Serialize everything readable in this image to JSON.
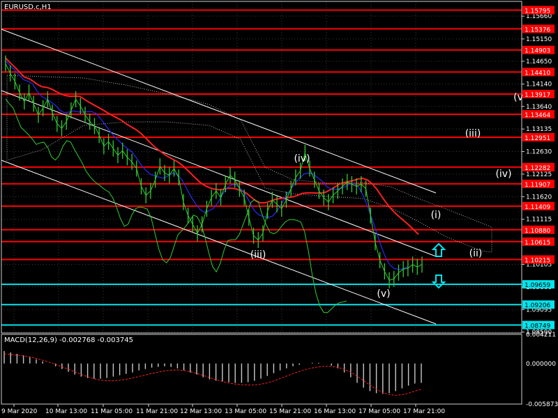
{
  "chart_title": "EURUSD.c,H1",
  "macd_title": "MACD(12,26,9) -0.002768 -0.003745",
  "colors": {
    "background": "#000000",
    "price": "#33cc33",
    "level_red": "#ff0000",
    "level_cyan": "#00e5ee",
    "ma_red": "#ff2020",
    "ma_blue": "#2a2aff",
    "channel": "#ffffff",
    "rsi_line": "#33cc33",
    "arrow": "#00e5ee"
  },
  "chart_data": {
    "type": "line",
    "symbol": "EURUSD.c",
    "timeframe": "H1",
    "y_tick_labels": [
      "1.15660",
      "1.15150",
      "1.14650",
      "1.14140",
      "1.13640",
      "1.13135",
      "1.12630",
      "1.12125",
      "1.11620",
      "1.11115",
      "1.10610",
      "1.10105",
      "1.09600",
      "1.09095",
      "1.08590"
    ],
    "ylim": [
      1.0857,
      1.1599
    ],
    "x_tick_labels": [
      "9 Mar 2020",
      "10 Mar 13:00",
      "11 Mar 05:00",
      "11 Mar 21:00",
      "12 Mar 13:00",
      "13 Mar 05:00",
      "15 Mar 21:00",
      "16 Mar 13:00",
      "17 Mar 05:00",
      "17 Mar 21:00"
    ],
    "horizontal_levels": [
      {
        "price": "1.15795",
        "color": "red"
      },
      {
        "price": "1.15376",
        "color": "red"
      },
      {
        "price": "1.14903",
        "color": "red"
      },
      {
        "price": "1.14410",
        "color": "red"
      },
      {
        "price": "1.13917",
        "color": "red"
      },
      {
        "price": "1.13464",
        "color": "red"
      },
      {
        "price": "1.12951",
        "color": "red"
      },
      {
        "price": "1.12282",
        "color": "red"
      },
      {
        "price": "1.11907",
        "color": "red"
      },
      {
        "price": "1.11409",
        "color": "red"
      },
      {
        "price": "1.10880",
        "color": "red"
      },
      {
        "price": "1.10615",
        "color": "red"
      },
      {
        "price": "1.10215",
        "color": "red"
      },
      {
        "price": "1.09659",
        "color": "cyan"
      },
      {
        "price": "1.09206",
        "color": "cyan"
      },
      {
        "price": "1.08749",
        "color": "cyan"
      }
    ],
    "wave_labels": [
      "(iii)",
      "(iv)",
      "(v)",
      "(i)",
      "(ii)",
      "(iii)",
      "(iv)",
      "(v"
    ],
    "price_series": [
      1.146,
      1.1438,
      1.142,
      1.1395,
      1.1375,
      1.1395,
      1.137,
      1.1345,
      1.136,
      1.138,
      1.135,
      1.1325,
      1.1315,
      1.133,
      1.1355,
      1.138,
      1.1365,
      1.1345,
      1.133,
      1.132,
      1.13,
      1.1275,
      1.1285,
      1.127,
      1.1255,
      1.1265,
      1.125,
      1.124,
      1.1225,
      1.1185,
      1.1165,
      1.1175,
      1.12,
      1.123,
      1.1215,
      1.121,
      1.1225,
      1.1205,
      1.115,
      1.112,
      1.11,
      1.108,
      1.11,
      1.1135,
      1.116,
      1.1175,
      1.116,
      1.119,
      1.121,
      1.12,
      1.118,
      1.116,
      1.1115,
      1.1075,
      1.1065,
      1.108,
      1.113,
      1.1155,
      1.1145,
      1.1135,
      1.1155,
      1.118,
      1.1205,
      1.122,
      1.126,
      1.1225,
      1.12,
      1.1175,
      1.116,
      1.115,
      1.1165,
      1.1175,
      1.1185,
      1.1195,
      1.119,
      1.1185,
      1.119,
      1.118,
      1.112,
      1.106,
      1.102,
      1.0995,
      1.0975,
      1.0978,
      1.0992,
      1.1,
      1.1002,
      1.101,
      1.1005,
      1.101
    ],
    "macd_tick_labels": [
      "0.004211",
      "0.000000",
      "-0.005873"
    ],
    "macd_ylim": [
      -0.005873,
      0.004211
    ],
    "macd_histogram": [
      0.0018,
      0.0016,
      0.0014,
      0.0012,
      0.0009,
      0.0006,
      0.0003,
      0.0,
      -0.0004,
      -0.0008,
      -0.0012,
      -0.0016,
      -0.0019,
      -0.0021,
      -0.0022,
      -0.0022,
      -0.0021,
      -0.0019,
      -0.0017,
      -0.0015,
      -0.0013,
      -0.001,
      -0.0008,
      -0.0006,
      -0.0005,
      -0.0004,
      -0.0005,
      -0.0007,
      -0.001,
      -0.0013,
      -0.0016,
      -0.002,
      -0.0023,
      -0.0025,
      -0.0026,
      -0.0027,
      -0.0028,
      -0.0028,
      -0.0027,
      -0.0025,
      -0.0022,
      -0.0018,
      -0.0014,
      -0.001,
      -0.0007,
      -0.0004,
      -0.0002,
      0.0,
      0.0001,
      0.0001,
      0.0,
      -0.0003,
      -0.0007,
      -0.0013,
      -0.002,
      -0.0028,
      -0.0035,
      -0.004,
      -0.0043,
      -0.0044,
      -0.0043,
      -0.004,
      -0.0036,
      -0.0032,
      -0.0029,
      -0.0028
    ]
  }
}
